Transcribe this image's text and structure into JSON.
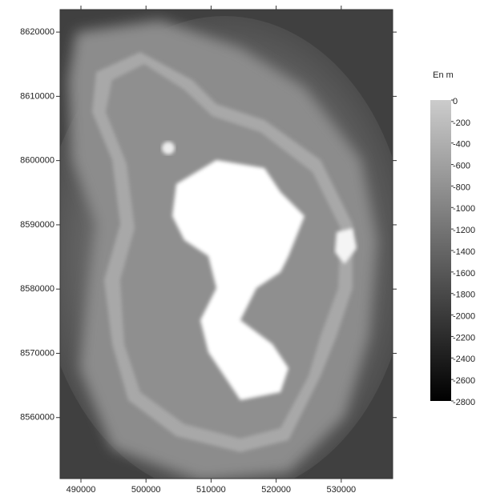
{
  "chart_data": {
    "type": "map",
    "xlim": [
      486800,
      537900
    ],
    "xticks": [
      490000,
      500000,
      510000,
      520000,
      530000
    ],
    "ylim": [
      8550500,
      8623500
    ],
    "yticks": [
      8560000,
      8570000,
      8580000,
      8590000,
      8600000,
      8610000,
      8620000
    ],
    "colorbar": {
      "label": "En m",
      "lim": [
        -2800,
        0
      ],
      "colors": [
        "#000000",
        "#cccccc"
      ],
      "ticks": [
        0,
        -200,
        -400,
        -600,
        -800,
        -1000,
        -1200,
        -1400,
        -1600,
        -1800,
        -2000,
        -2200,
        -2400,
        -2600,
        -2800
      ]
    }
  }
}
